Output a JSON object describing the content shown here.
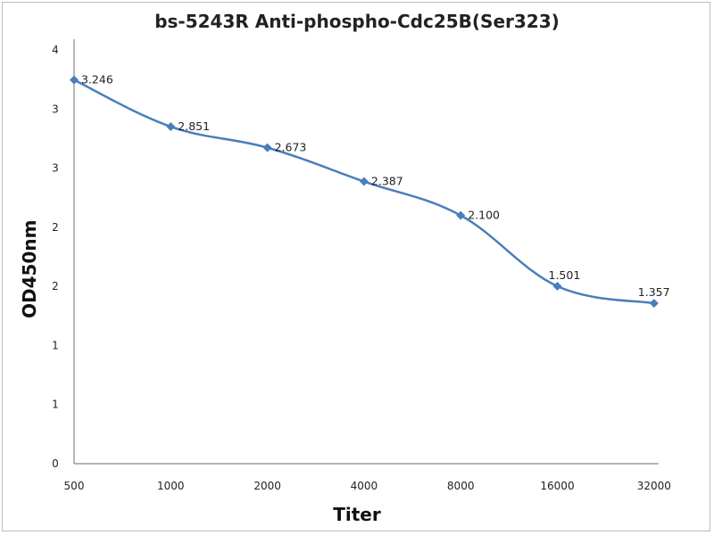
{
  "chart_data": {
    "type": "line",
    "title": "bs-5243R Anti-phospho-Cdc25B(Ser323)",
    "xlabel": "Titer",
    "ylabel": "OD450nm",
    "categories": [
      "500",
      "1000",
      "2000",
      "4000",
      "8000",
      "16000",
      "32000"
    ],
    "series": [
      {
        "name": "OD450nm",
        "values": [
          3.246,
          2.851,
          2.673,
          2.387,
          2.1,
          1.501,
          1.357
        ],
        "labels": [
          "3.246",
          "2.851",
          "2.673",
          "2.387",
          "2.100",
          "1.501",
          "1.357"
        ],
        "color": "#4a7ebb"
      }
    ],
    "ylim": [
      0,
      3.5
    ],
    "yticks": [
      0,
      0.5,
      1,
      1.5,
      2,
      2.5,
      3,
      3.5
    ],
    "ytick_labels": [
      "0",
      "1",
      "1",
      "2",
      "2",
      "3",
      "3",
      "4"
    ],
    "grid": false,
    "legend": "none"
  }
}
